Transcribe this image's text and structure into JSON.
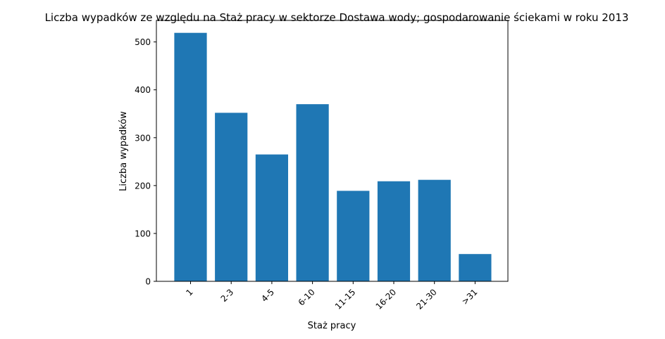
{
  "chart_data": {
    "type": "bar",
    "title": "Liczba wypadków ze względu na Staż pracy w sektorze Dostawa wody; gospodarowanie ściekami w roku 2013",
    "xlabel": "Staż pracy",
    "ylabel": "Liczba wypadków",
    "categories": [
      "1",
      "2-3",
      "4-5",
      "6-10",
      "11-15",
      "16-20",
      "21-30",
      ">31"
    ],
    "values": [
      519,
      352,
      265,
      370,
      189,
      209,
      212,
      57
    ],
    "ylim": [
      0,
      545
    ],
    "yticks": [
      0,
      100,
      200,
      300,
      400,
      500
    ],
    "grid": false,
    "bar_color": "#1f77b4"
  }
}
